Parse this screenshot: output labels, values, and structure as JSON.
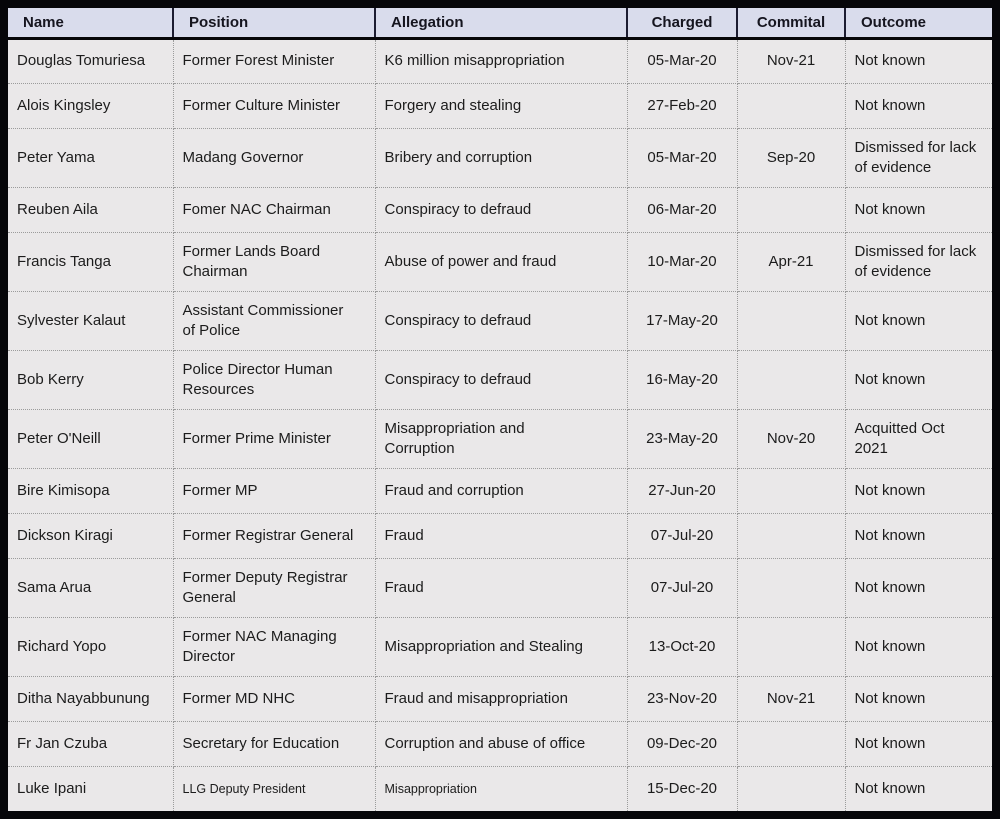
{
  "table": {
    "columns": [
      {
        "key": "name",
        "label": "Name",
        "align": "left"
      },
      {
        "key": "position",
        "label": "Position",
        "align": "left"
      },
      {
        "key": "allegation",
        "label": "Allegation",
        "align": "left"
      },
      {
        "key": "charged",
        "label": "Charged",
        "align": "center"
      },
      {
        "key": "commital",
        "label": "Commital",
        "align": "center"
      },
      {
        "key": "outcome",
        "label": "Outcome",
        "align": "left"
      }
    ],
    "rows": [
      {
        "name": "Douglas Tomuriesa",
        "position": "Former Forest Minister",
        "allegation": "K6 million misappropriation",
        "charged": "05-Mar-20",
        "commital": "Nov-21",
        "outcome": "Not known"
      },
      {
        "name": "Alois Kingsley",
        "position": "Former Culture Minister",
        "allegation": "Forgery and stealing",
        "charged": "27-Feb-20",
        "commital": "",
        "outcome": "Not known"
      },
      {
        "name": "Peter Yama",
        "position": "Madang Governor",
        "allegation": "Bribery and corruption",
        "charged": "05-Mar-20",
        "commital": "Sep-20",
        "outcome": "Dismissed for lack\nof evidence"
      },
      {
        "name": "Reuben Aila",
        "position": "Fomer NAC Chairman",
        "allegation": "Conspiracy to defraud",
        "charged": "06-Mar-20",
        "commital": "",
        "outcome": "Not known"
      },
      {
        "name": "Francis Tanga",
        "position": "Former Lands Board\nChairman",
        "allegation": "Abuse of power and fraud",
        "charged": "10-Mar-20",
        "commital": "Apr-21",
        "outcome": "Dismissed for lack\nof evidence"
      },
      {
        "name": "Sylvester Kalaut",
        "position": "Assistant Commissioner\nof Police",
        "allegation": "Conspiracy to defraud",
        "charged": "17-May-20",
        "commital": "",
        "outcome": "Not known"
      },
      {
        "name": "Bob Kerry",
        "position": "Police Director Human\nResources",
        "allegation": "Conspiracy to defraud",
        "charged": "16-May-20",
        "commital": "",
        "outcome": "Not known"
      },
      {
        "name": "Peter O'Neill",
        "position": "Former Prime Minister",
        "allegation": "Misappropriation and\nCorruption",
        "charged": "23-May-20",
        "commital": "Nov-20",
        "outcome": "Acquitted Oct\n2021"
      },
      {
        "name": "Bire Kimisopa",
        "position": "Former MP",
        "allegation": "Fraud and corruption",
        "charged": "27-Jun-20",
        "commital": "",
        "outcome": "Not known"
      },
      {
        "name": "Dickson Kiragi",
        "position": "Former Registrar General",
        "allegation": "Fraud",
        "charged": "07-Jul-20",
        "commital": "",
        "outcome": "Not known"
      },
      {
        "name": "Sama Arua",
        "position": "Former Deputy Registrar\nGeneral",
        "allegation": "Fraud",
        "charged": "07-Jul-20",
        "commital": "",
        "outcome": "Not known"
      },
      {
        "name": "Richard Yopo",
        "position": "Former NAC Managing\nDirector",
        "allegation": "Misappropriation and Stealing",
        "charged": "13-Oct-20",
        "commital": "",
        "outcome": "Not known"
      },
      {
        "name": "Ditha Nayabbunung",
        "position": "Former MD NHC",
        "allegation": "Fraud and misappropriation",
        "charged": "23-Nov-20",
        "commital": "Nov-21",
        "outcome": "Not known"
      },
      {
        "name": "Fr Jan Czuba",
        "position": "Secretary for Education",
        "allegation": "Corruption and abuse of office",
        "charged": "09-Dec-20",
        "commital": "",
        "outcome": "Not known"
      },
      {
        "name": "Luke Ipani",
        "position": "LLG Deputy President",
        "allegation": "Misappropriation",
        "charged": "15-Dec-20",
        "commital": "",
        "outcome": "Not known"
      }
    ]
  },
  "colors": {
    "frame": "#060609",
    "header_bg": "#d9dcec",
    "header_divider": "#1c1c31",
    "row_bg": "#eae8e9",
    "gridline_dotted": "#9b9b9b",
    "text": "#1c1c1c"
  }
}
